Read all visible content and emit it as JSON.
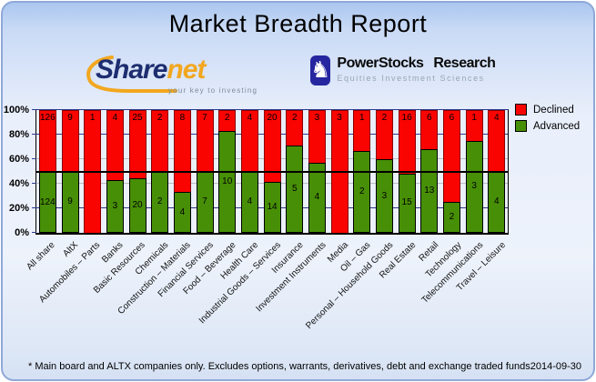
{
  "title": "Market Breadth Report",
  "logos": {
    "sharenet": {
      "text_share": "Share",
      "text_net": "net",
      "tagline": "your key to investing",
      "color_share": "#1d2d70",
      "color_net": "#f2a71f"
    },
    "powerstocks": {
      "line1": "PowerStocks Research",
      "line2": "Equities Investment Sciences",
      "icon": "knight-chess-piece",
      "box_color": "#2626a0",
      "knight_glyph": "♞"
    }
  },
  "legend": {
    "items": [
      {
        "label": "Declined",
        "color": "#f90400"
      },
      {
        "label": "Advanced",
        "color": "#478f06"
      }
    ]
  },
  "chart_data": {
    "type": "bar",
    "subtype": "100-percent-stacked-column",
    "title": "Market Breadth Report",
    "categories": [
      "All share",
      "AltX",
      "Automobiles – Parts",
      "Banks",
      "Basic Resources",
      "Chemicals",
      "Construction – Materials",
      "Financial Services",
      "Food – Beverage",
      "Health Care",
      "Industrial Goods – Services",
      "Insurance",
      "Investment Instruments",
      "Media",
      "Oil – Gas",
      "Personal – Household Goods",
      "Real Estate",
      "Retail",
      "Technology",
      "Telecommunications",
      "Travel – Leisure"
    ],
    "series": [
      {
        "name": "Declined",
        "color": "#f90400",
        "values": [
          126,
          9,
          1,
          4,
          25,
          2,
          8,
          7,
          2,
          4,
          20,
          2,
          3,
          3,
          1,
          2,
          16,
          6,
          6,
          1,
          4
        ]
      },
      {
        "name": "Advanced",
        "color": "#478f06",
        "values": [
          124,
          9,
          0,
          3,
          20,
          2,
          4,
          7,
          10,
          4,
          14,
          5,
          4,
          0,
          2,
          3,
          15,
          13,
          2,
          3,
          4
        ]
      }
    ],
    "xlabel": "",
    "ylabel": "",
    "ylim": [
      0,
      100
    ],
    "y_ticks": [
      "0%",
      "20%",
      "40%",
      "60%",
      "80%",
      "100%"
    ],
    "gridline_pcts": [
      20,
      40,
      60,
      80
    ],
    "gridline_colors": {
      "20": "#2a3a8e",
      "40": "#bdbdbd",
      "60": "#bdbdbd",
      "80": "#2a3a8e"
    },
    "grid": true,
    "legend_position": "top-right",
    "reference_line_pct": 49.6,
    "bar_label_color": "#000000"
  },
  "footer": {
    "note": "* Main board and ALTX companies only. Excludes options, warrants, derivatives, debt and exchange traded funds",
    "date": "2014-09-30"
  }
}
